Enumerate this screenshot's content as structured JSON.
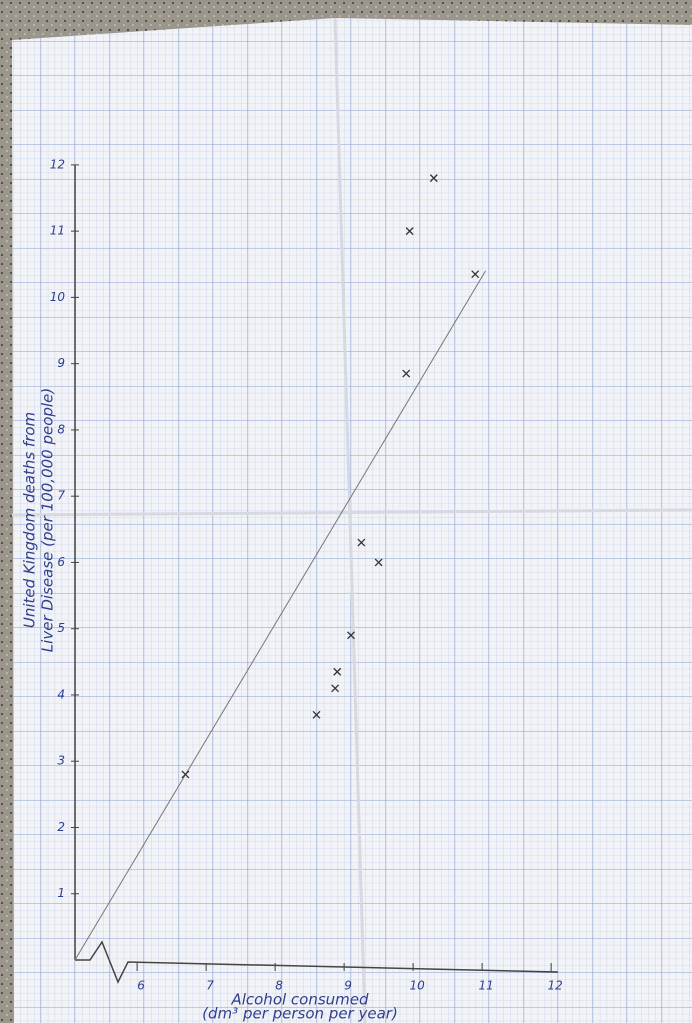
{
  "chart_data": {
    "type": "scatter",
    "x_label": [
      "Alcohol consumed",
      "(dm³ per person per year)"
    ],
    "y_label": [
      "United Kingdom deaths from",
      "Liver Disease (per 100,000 people)"
    ],
    "x": [
      6.7,
      8.6,
      8.87,
      8.9,
      9.1,
      9.25,
      9.5,
      9.9,
      9.95,
      10.3,
      10.9
    ],
    "series": [
      {
        "color": "#333333",
        "values": [
          2.8,
          3.7,
          4.1,
          4.35,
          4.9,
          6.3,
          6.0,
          8.85,
          11.0,
          11.8,
          10.35
        ]
      }
    ],
    "trend_line": {
      "x": [
        5.1,
        11.05
      ],
      "y": [
        0,
        10.4
      ],
      "color": "#777777"
    },
    "xlim": [
      5.1,
      12.1
    ],
    "ylim": [
      0,
      12.3
    ],
    "xticks": [
      6,
      7,
      8,
      9,
      10,
      11,
      12
    ],
    "yticks": [
      1,
      2,
      3,
      4,
      5,
      6,
      7,
      8,
      9,
      10,
      11,
      12
    ],
    "grid": true
  }
}
